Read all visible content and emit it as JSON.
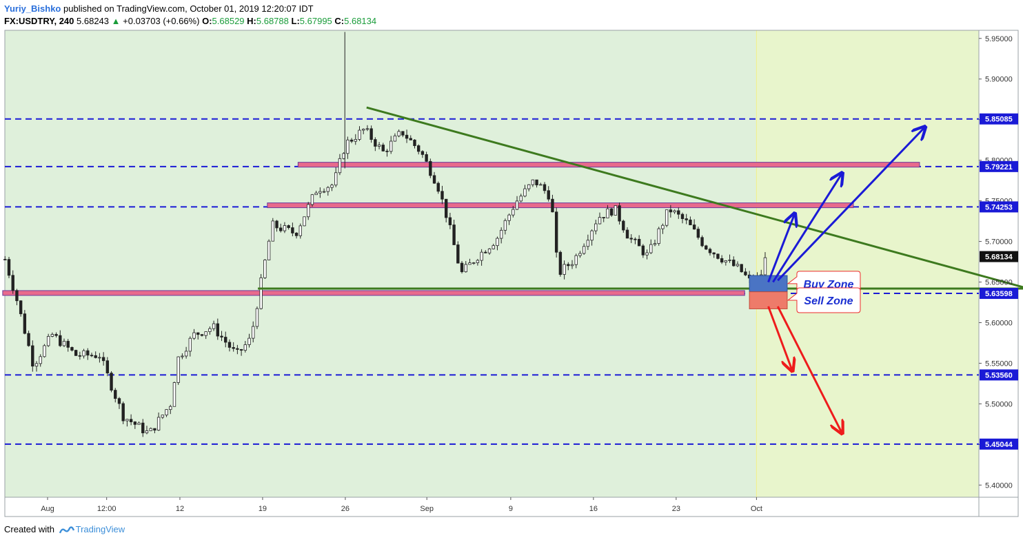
{
  "header": {
    "author": "Yuriy_Bishko",
    "published": "published on TradingView.com, October 01, 2019 12:20:07 IDT",
    "symbol": "FX:USDTRY, 240",
    "last": "5.68243",
    "change": "+0.03703 (+0.66%)",
    "open_label": "O:",
    "open": "5.68529",
    "high_label": "H:",
    "high": "5.68788",
    "low_label": "L:",
    "low": "5.67995",
    "close_label": "C:",
    "close": "5.68134"
  },
  "footer": {
    "created": "Created with",
    "brand": "TradingView"
  },
  "colors": {
    "bg_past": "#dff0db",
    "bg_future": "#e8f5cc",
    "level_line": "#1a1ad6",
    "trendline": "#3d7a1e",
    "zone_band": "#e86a8c",
    "buy_zone": "#4a74c4",
    "sell_zone": "#ee7b6a",
    "arrow_up": "#1a1ad6",
    "arrow_down": "#ee1c1c",
    "candle": "#222222"
  },
  "chart_data": {
    "type": "candlestick",
    "instrument": "FX:USDTRY",
    "timeframe": "240",
    "y_axis": {
      "range": [
        5.385,
        5.96
      ],
      "ticks": [
        "5.95000",
        "5.90000",
        "5.85000",
        "5.80000",
        "5.75000",
        "5.70000",
        "5.65000",
        "5.60000",
        "5.55000",
        "5.50000",
        "5.45000",
        "5.40000"
      ]
    },
    "x_axis": {
      "ticks": [
        {
          "label": "Aug",
          "day": 0
        },
        {
          "label": "12:00",
          "day": 2.5
        },
        {
          "label": "12",
          "day": 5.6
        },
        {
          "label": "19",
          "day": 9.1
        },
        {
          "label": "26",
          "day": 12.6
        },
        {
          "label": "Sep",
          "day": 16.05
        },
        {
          "label": "9",
          "day": 19.6
        },
        {
          "label": "16",
          "day": 23.1
        },
        {
          "label": "23",
          "day": 26.6
        },
        {
          "label": "Oct",
          "day": 30.0
        }
      ]
    },
    "price_levels": [
      {
        "value": 5.85085,
        "label": "5.85085"
      },
      {
        "value": 5.79221,
        "label": "5.79221"
      },
      {
        "value": 5.74253,
        "label": "5.74253"
      },
      {
        "value": 5.63598,
        "label": "5.63598"
      },
      {
        "value": 5.5356,
        "label": "5.53560"
      },
      {
        "value": 5.45044,
        "label": "5.45044"
      }
    ],
    "current_price": {
      "value": 5.68134,
      "label": "5.68134"
    },
    "anchors": [
      {
        "day": -1.8,
        "price": 5.678
      },
      {
        "day": -1.3,
        "price": 5.628
      },
      {
        "day": -0.6,
        "price": 5.548
      },
      {
        "day": 0.2,
        "price": 5.585
      },
      {
        "day": 1.2,
        "price": 5.56
      },
      {
        "day": 2.2,
        "price": 5.56
      },
      {
        "day": 3.2,
        "price": 5.485
      },
      {
        "day": 4.3,
        "price": 5.463
      },
      {
        "day": 5.2,
        "price": 5.5
      },
      {
        "day": 5.5,
        "price": 5.555
      },
      {
        "day": 6.2,
        "price": 5.585
      },
      {
        "day": 7.0,
        "price": 5.595
      },
      {
        "day": 8.0,
        "price": 5.56
      },
      {
        "day": 8.6,
        "price": 5.58
      },
      {
        "day": 9.1,
        "price": 5.66
      },
      {
        "day": 9.5,
        "price": 5.72
      },
      {
        "day": 10.5,
        "price": 5.71
      },
      {
        "day": 11.4,
        "price": 5.765
      },
      {
        "day": 12.1,
        "price": 5.77
      },
      {
        "day": 12.6,
        "price": 5.82
      },
      {
        "day": 13.4,
        "price": 5.838
      },
      {
        "day": 14.2,
        "price": 5.81
      },
      {
        "day": 15.0,
        "price": 5.835
      },
      {
        "day": 15.8,
        "price": 5.81
      },
      {
        "day": 16.5,
        "price": 5.77
      },
      {
        "day": 16.9,
        "price": 5.73
      },
      {
        "day": 17.5,
        "price": 5.66
      },
      {
        "day": 18.2,
        "price": 5.682
      },
      {
        "day": 19.0,
        "price": 5.703
      },
      {
        "day": 19.8,
        "price": 5.748
      },
      {
        "day": 20.6,
        "price": 5.775
      },
      {
        "day": 21.3,
        "price": 5.755
      },
      {
        "day": 21.6,
        "price": 5.66
      },
      {
        "day": 22.3,
        "price": 5.678
      },
      {
        "day": 23.3,
        "price": 5.73
      },
      {
        "day": 24.0,
        "price": 5.74
      },
      {
        "day": 24.6,
        "price": 5.705
      },
      {
        "day": 25.4,
        "price": 5.682
      },
      {
        "day": 26.3,
        "price": 5.74
      },
      {
        "day": 27.1,
        "price": 5.722
      },
      {
        "day": 27.8,
        "price": 5.695
      },
      {
        "day": 28.5,
        "price": 5.68
      },
      {
        "day": 29.3,
        "price": 5.665
      },
      {
        "day": 29.8,
        "price": 5.648
      },
      {
        "day": 30.15,
        "price": 5.655
      },
      {
        "day": 30.4,
        "price": 5.681
      }
    ],
    "annotations": {
      "zone_bands": [
        {
          "day_from": -1.9,
          "day_to": 29.5,
          "price": 5.6365
        },
        {
          "day_from": 9.3,
          "day_to": 34.1,
          "price": 5.7445
        },
        {
          "day_from": 10.6,
          "day_to": 36.9,
          "price": 5.7945
        }
      ],
      "horizontal_support": {
        "day_from": 8.9,
        "day_to": 42.0,
        "price": 5.642
      },
      "trendline": {
        "from": {
          "day": 13.5,
          "price": 5.865
        },
        "to": {
          "day": 42.0,
          "price": 5.638
        }
      },
      "zone_boxes": [
        {
          "name": "Buy Zone",
          "day_from": 29.7,
          "day_to": 31.3,
          "price_top": 5.658,
          "price_bottom": 5.638
        },
        {
          "name": "Sell Zone",
          "day_from": 29.7,
          "day_to": 31.3,
          "price_top": 5.638,
          "price_bottom": 5.617
        }
      ],
      "arrows": [
        {
          "color": "blue",
          "from": {
            "day": 30.5,
            "price": 5.65
          },
          "to": {
            "day": 31.6,
            "price": 5.733
          }
        },
        {
          "color": "blue",
          "from": {
            "day": 30.7,
            "price": 5.65
          },
          "to": {
            "day": 33.6,
            "price": 5.783
          }
        },
        {
          "color": "blue",
          "from": {
            "day": 30.9,
            "price": 5.652
          },
          "to": {
            "day": 37.1,
            "price": 5.84
          }
        },
        {
          "color": "red",
          "from": {
            "day": 30.5,
            "price": 5.62
          },
          "to": {
            "day": 31.5,
            "price": 5.542
          }
        },
        {
          "color": "red",
          "from": {
            "day": 30.9,
            "price": 5.62
          },
          "to": {
            "day": 33.6,
            "price": 5.465
          }
        }
      ]
    }
  }
}
